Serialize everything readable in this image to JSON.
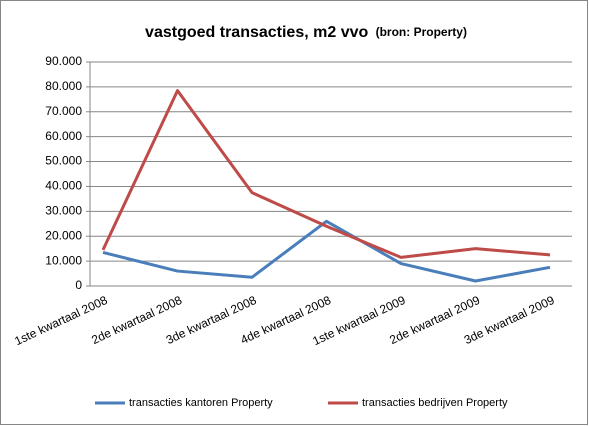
{
  "chart_data": {
    "type": "line",
    "title": "vastgoed transacties, m2 vvo",
    "subtitle": "(bron: Property)",
    "categories": [
      "1ste kwartaal 2008",
      "2de kwartaal 2008",
      "3de kwartaal 2008",
      "4de kwartaal 2008",
      "1ste kwartaal 2009",
      "2de kwartaal 2009",
      "3de kwartaal 2009"
    ],
    "series": [
      {
        "name": "transacties kantoren Property",
        "color": "#4a7ebb",
        "values": [
          13500,
          6000,
          3500,
          26000,
          9000,
          2000,
          7500
        ]
      },
      {
        "name": "transacties bedrijven Property",
        "color": "#be4b48",
        "values": [
          14500,
          78500,
          37500,
          24000,
          11500,
          15000,
          12500
        ]
      }
    ],
    "ylim": [
      0,
      90000
    ],
    "yticks": [
      0,
      {
        "value": 10000,
        "label": "10.000"
      },
      {
        "value": 20000,
        "label": "20.000"
      },
      {
        "value": 30000,
        "label": "30.000"
      },
      {
        "value": 40000,
        "label": "40.000"
      },
      {
        "value": 50000,
        "label": "50.000"
      },
      {
        "value": 60000,
        "label": "60.000"
      },
      {
        "value": 70000,
        "label": "70.000"
      },
      {
        "value": 80000,
        "label": "80.000"
      },
      {
        "value": 90000,
        "label": "90.000"
      }
    ],
    "grid": true,
    "legend": "bottom"
  }
}
